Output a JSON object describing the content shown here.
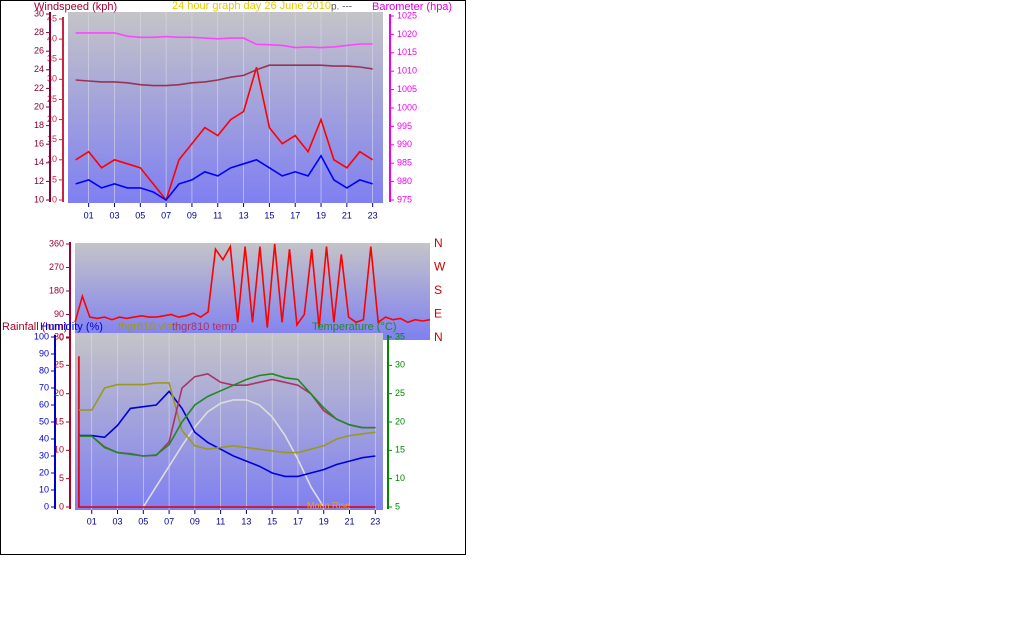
{
  "chart_data": [
    {
      "type": "line",
      "title": "24 hour graph day   26 June 2010",
      "note": "p. ---",
      "ylabel": "Windspeed (kph)",
      "y2label": "Barometer (hpa)",
      "x": [
        0,
        1,
        2,
        3,
        4,
        5,
        6,
        7,
        8,
        9,
        10,
        11,
        12,
        13,
        14,
        15,
        16,
        17,
        18,
        19,
        20,
        21,
        22,
        23
      ],
      "xlim": [
        -0.6,
        23.8
      ],
      "xticks": [
        {
          "value": 1,
          "label": "01"
        },
        {
          "value": 3,
          "label": "03"
        },
        {
          "value": 5,
          "label": "05"
        },
        {
          "value": 7,
          "label": "07"
        },
        {
          "value": 9,
          "label": "09"
        },
        {
          "value": 11,
          "label": "11"
        },
        {
          "value": 13,
          "label": "13"
        },
        {
          "value": 15,
          "label": "15"
        },
        {
          "value": 17,
          "label": "17"
        },
        {
          "value": 19,
          "label": "19"
        },
        {
          "value": 21,
          "label": "21"
        },
        {
          "value": 23,
          "label": "23"
        }
      ],
      "xgrid": true,
      "ylim": [
        0,
        45
      ],
      "yticks": [
        0,
        5,
        10,
        15,
        20,
        25,
        30,
        35,
        40,
        45
      ],
      "ycolor": "#cc2244",
      "y3lim": [
        10,
        30
      ],
      "y3ticks": [
        10,
        12,
        14,
        16,
        18,
        20,
        22,
        24,
        26,
        28,
        30
      ],
      "y3color": "#880033",
      "y2lim": [
        975,
        1025
      ],
      "y2ticks": [
        975,
        980,
        985,
        990,
        995,
        1000,
        1005,
        1010,
        1015,
        1020,
        1025
      ],
      "y2color": "#ee00ee",
      "series": [
        {
          "color": "#ff0000",
          "values": [
            10,
            12,
            8,
            10,
            9,
            8,
            4,
            0,
            10,
            14,
            18,
            16,
            20,
            22,
            33,
            18,
            14,
            16,
            12,
            20,
            10,
            8,
            12,
            10
          ]
        },
        {
          "color": "#0000ff",
          "values": [
            4,
            5,
            3,
            4,
            3,
            3,
            2,
            0,
            4,
            5,
            7,
            6,
            8,
            9,
            10,
            8,
            6,
            7,
            6,
            11,
            5,
            3,
            5,
            4
          ]
        },
        {
          "color": "#993355",
          "axis": "y3",
          "values": [
            22.9,
            22.8,
            22.7,
            22.7,
            22.6,
            22.4,
            22.3,
            22.3,
            22.4,
            22.6,
            22.7,
            22.9,
            23.2,
            23.4,
            24.0,
            24.5,
            24.5,
            24.5,
            24.5,
            24.5,
            24.4,
            24.4,
            24.3,
            24.1
          ]
        },
        {
          "color": "#ff44ff",
          "axis": "y2",
          "values": [
            1020.4,
            1020.4,
            1020.4,
            1020.4,
            1019.5,
            1019.2,
            1019.2,
            1019.4,
            1019.2,
            1019.2,
            1019.0,
            1018.8,
            1019.0,
            1019.0,
            1017.3,
            1017.2,
            1017.0,
            1016.4,
            1016.6,
            1016.4,
            1016.6,
            1017.0,
            1017.4,
            1017.4
          ]
        }
      ]
    },
    {
      "type": "line",
      "x": [
        0,
        0.5,
        1,
        1.5,
        2,
        2.5,
        3,
        3.5,
        4,
        4.5,
        5,
        5.5,
        6,
        6.5,
        7,
        7.5,
        8,
        8.5,
        9,
        9.5,
        10,
        10.5,
        11,
        11.5,
        12,
        12.5,
        13,
        13.5,
        14,
        14.5,
        15,
        15.5,
        16,
        16.5,
        17,
        17.5,
        18,
        18.5,
        19,
        19.5,
        20,
        20.5,
        21,
        21.5,
        22,
        22.5,
        23,
        23.5,
        24
      ],
      "xlim": [
        0,
        24
      ],
      "ylim": [
        0,
        360
      ],
      "yticks": [
        0,
        90,
        180,
        270,
        360
      ],
      "ycolor": "#990033",
      "y2lim": [
        0,
        360
      ],
      "y2ticks": [
        {
          "value": 0,
          "label": "N"
        },
        {
          "value": 90,
          "label": "E"
        },
        {
          "value": 180,
          "label": "S"
        },
        {
          "value": 270,
          "label": "W"
        },
        {
          "value": 360,
          "label": "N"
        }
      ],
      "y2color": "#cc0000",
      "series": [
        {
          "color": "#ff0000",
          "values": [
            60,
            160,
            80,
            75,
            80,
            70,
            80,
            75,
            80,
            85,
            80,
            80,
            85,
            90,
            80,
            85,
            95,
            80,
            100,
            340,
            300,
            350,
            60,
            350,
            60,
            350,
            40,
            360,
            60,
            340,
            50,
            90,
            340,
            40,
            350,
            60,
            320,
            80,
            60,
            70,
            350,
            60,
            80,
            70,
            75,
            60,
            70,
            65,
            70
          ]
        }
      ]
    },
    {
      "type": "line",
      "y3label": "Rainfall (mm)",
      "annotation": "Moon Rise",
      "x": [
        0,
        1,
        2,
        3,
        4,
        5,
        6,
        7,
        8,
        9,
        10,
        11,
        12,
        13,
        14,
        15,
        16,
        17,
        18,
        19,
        20,
        21,
        22,
        23
      ],
      "xlim": [
        -0.3,
        23.6
      ],
      "xticks": [
        {
          "value": 1,
          "label": "01"
        },
        {
          "value": 3,
          "label": "03"
        },
        {
          "value": 5,
          "label": "05"
        },
        {
          "value": 7,
          "label": "07"
        },
        {
          "value": 9,
          "label": "09"
        },
        {
          "value": 11,
          "label": "11"
        },
        {
          "value": 13,
          "label": "13"
        },
        {
          "value": 15,
          "label": "15"
        },
        {
          "value": 17,
          "label": "17"
        },
        {
          "value": 19,
          "label": "19"
        },
        {
          "value": 21,
          "label": "21"
        },
        {
          "value": 23,
          "label": "23"
        }
      ],
      "xgrid": true,
      "ylim": [
        0,
        100
      ],
      "yticks": [
        0,
        10,
        20,
        30,
        40,
        50,
        60,
        70,
        80,
        90,
        100
      ],
      "ycolor": "#0000cc",
      "y3lim": [
        0,
        30
      ],
      "y3ticks": [
        0,
        5,
        10,
        15,
        20,
        25,
        30
      ],
      "y3color": "#aa0022",
      "y2lim": [
        5,
        35
      ],
      "y2ticks": [
        5,
        10,
        15,
        20,
        25,
        30,
        35
      ],
      "y2color": "#008800",
      "series": [
        {
          "color": "#dddddd",
          "values": [
            null,
            null,
            null,
            null,
            null,
            0,
            12,
            24,
            36,
            47,
            56,
            61,
            63,
            63,
            60,
            53,
            42,
            28,
            12,
            0,
            null,
            null,
            null,
            null
          ]
        },
        {
          "color": "#dd0000",
          "axis": "y3",
          "x": [
            0,
            0,
            23
          ],
          "values": [
            26.6,
            0,
            0
          ]
        },
        {
          "name": "Humidity (%)",
          "color": "#0000dd",
          "values": [
            42,
            42,
            41,
            48,
            58,
            59,
            60,
            68,
            58,
            44,
            38,
            34,
            30,
            27,
            24,
            20,
            18,
            18,
            20,
            22,
            25,
            27,
            29,
            30
          ]
        },
        {
          "name": "thgr810 vlag",
          "color": "#999922",
          "values": [
            57,
            57,
            70,
            72,
            72,
            72,
            73,
            73,
            45,
            36,
            34,
            35,
            36,
            35,
            34,
            33,
            32,
            32,
            34,
            36,
            40,
            42,
            43,
            44
          ]
        },
        {
          "name": "thgr810 temp",
          "color": "#aa3366",
          "axis": "y2",
          "values": [
            17.5,
            17.5,
            15.6,
            14.6,
            14.4,
            14.0,
            14.1,
            16.5,
            26,
            28,
            28.5,
            27,
            26.5,
            26.5,
            27,
            27.5,
            27,
            26.5,
            25,
            22,
            20.5,
            19.5,
            19,
            19
          ]
        },
        {
          "name": "Temperature (°C)",
          "color": "#228822",
          "axis": "y2",
          "values": [
            17.5,
            17.5,
            15.5,
            14.6,
            14.3,
            14.0,
            14.2,
            16,
            20,
            23,
            24.5,
            25.5,
            26.5,
            27.5,
            28.2,
            28.5,
            27.8,
            27.5,
            25,
            22.5,
            20.5,
            19.5,
            19,
            19
          ]
        }
      ]
    }
  ]
}
